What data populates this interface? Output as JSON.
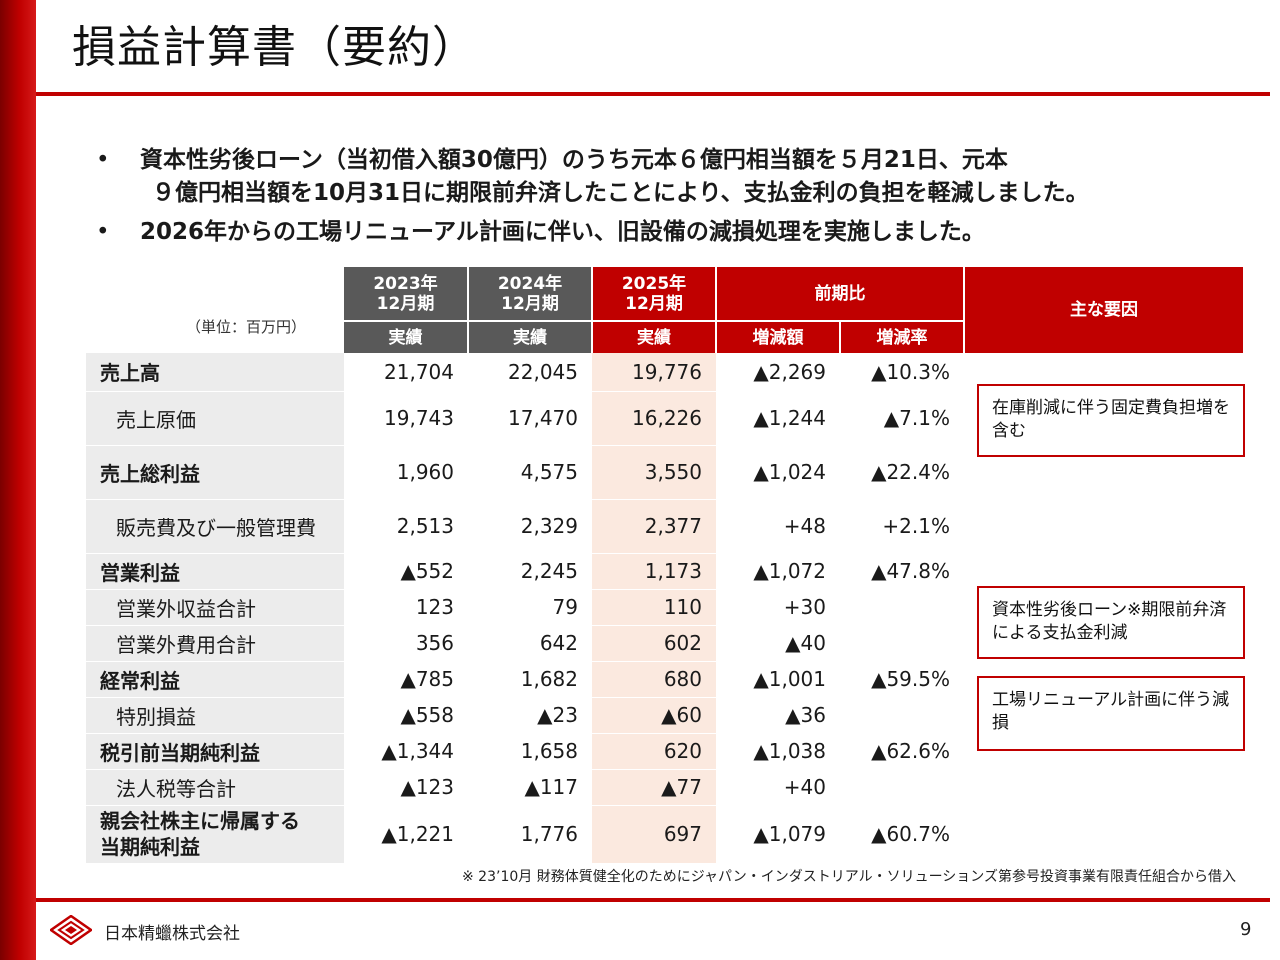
{
  "title": "損益計算書（要約）",
  "bullets": [
    {
      "line1": "資本性劣後ローン（当初借入額30億円）のうち元本６億円相当額を５月21日、元本",
      "line2": "９億円相当額を10月31日に期限前弁済したことにより、支払金利の負担を軽減しました。"
    },
    {
      "line1": "2026年からの工場リニューアル計画に伴い、旧設備の減損処理を実施しました。",
      "line2": ""
    }
  ],
  "bullet_mark": "•",
  "table": {
    "unit": "（単位：百万円）",
    "headers": {
      "y2023_line1": "2023年",
      "y2023_line2": "12月期",
      "y2023_sub": "実績",
      "y2024_line1": "2024年",
      "y2024_line2": "12月期",
      "y2024_sub": "実績",
      "y2025_line1": "2025年",
      "y2025_line2": "12月期",
      "y2025_sub": "実績",
      "prev": "前期比",
      "diff": "増減額",
      "rate": "増減率",
      "factors": "主な要因"
    },
    "rows": [
      {
        "label": "売上高",
        "v2023": "21,704",
        "v2024": "22,045",
        "v2025": "19,776",
        "diff": "▲2,269",
        "rate": "▲10.3%"
      },
      {
        "label": "売上原価",
        "v2023": "19,743",
        "v2024": "17,470",
        "v2025": "16,226",
        "diff": "▲1,244",
        "rate": "▲7.1%"
      },
      {
        "label": "売上総利益",
        "v2023": "1,960",
        "v2024": "4,575",
        "v2025": "3,550",
        "diff": "▲1,024",
        "rate": "▲22.4%"
      },
      {
        "label": "販売費及び一般管理費",
        "v2023": "2,513",
        "v2024": "2,329",
        "v2025": "2,377",
        "diff": "+48",
        "rate": "+2.1%"
      },
      {
        "label": "営業利益",
        "v2023": "▲552",
        "v2024": "2,245",
        "v2025": "1,173",
        "diff": "▲1,072",
        "rate": "▲47.8%"
      },
      {
        "label": "営業外収益合計",
        "v2023": "123",
        "v2024": "79",
        "v2025": "110",
        "diff": "+30",
        "rate": ""
      },
      {
        "label": "営業外費用合計",
        "v2023": "356",
        "v2024": "642",
        "v2025": "602",
        "diff": "▲40",
        "rate": ""
      },
      {
        "label": "経常利益",
        "v2023": "▲785",
        "v2024": "1,682",
        "v2025": "680",
        "diff": "▲1,001",
        "rate": "▲59.5%"
      },
      {
        "label": "特別損益",
        "v2023": "▲558",
        "v2024": "▲23",
        "v2025": "▲60",
        "diff": "▲36",
        "rate": ""
      },
      {
        "label": "税引前当期純利益",
        "v2023": "▲1,344",
        "v2024": "1,658",
        "v2025": "620",
        "diff": "▲1,038",
        "rate": "▲62.6%"
      },
      {
        "label": "法人税等合計",
        "v2023": "▲123",
        "v2024": "▲117",
        "v2025": "▲77",
        "diff": "+40",
        "rate": ""
      },
      {
        "label_line1": "親会社株主に帰属する",
        "label_line2": "当期純利益",
        "v2023": "▲1,221",
        "v2024": "1,776",
        "v2025": "697",
        "diff": "▲1,079",
        "rate": "▲60.7%"
      }
    ]
  },
  "notes": [
    "在庫削減に伴う固定費負担増を含む",
    "資本性劣後ローン※期限前弁済による支払金利減",
    "工場リニューアル計画に伴う減損"
  ],
  "footnote": "※ 23’10月 財務体質健全化のためにジャパン・インダストリアル・ソリューションズ第参号投資事業有限責任組合から借入",
  "footer": {
    "company": "日本精蠟株式会社",
    "page": "9"
  },
  "colors": {
    "accent": "#c00000",
    "header_gray": "#595959",
    "label_bg": "#ececec",
    "highlight": "#fbe9df"
  }
}
